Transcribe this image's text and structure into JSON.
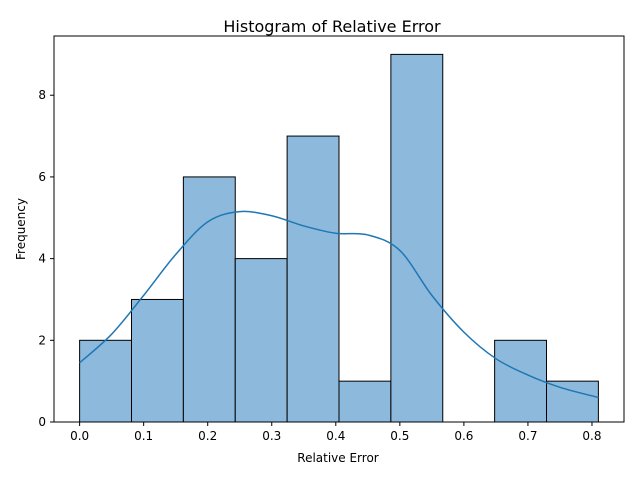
{
  "chart_data": {
    "type": "bar",
    "title": "Histogram of Relative Error",
    "xlabel": "Relative Error",
    "ylabel": "Frequency",
    "bins": [
      {
        "x_start": 0.0,
        "x_end": 0.081,
        "count": 2
      },
      {
        "x_start": 0.081,
        "x_end": 0.162,
        "count": 3
      },
      {
        "x_start": 0.162,
        "x_end": 0.243,
        "count": 6
      },
      {
        "x_start": 0.243,
        "x_end": 0.324,
        "count": 4
      },
      {
        "x_start": 0.324,
        "x_end": 0.405,
        "count": 7
      },
      {
        "x_start": 0.405,
        "x_end": 0.486,
        "count": 1
      },
      {
        "x_start": 0.486,
        "x_end": 0.567,
        "count": 9
      },
      {
        "x_start": 0.567,
        "x_end": 0.648,
        "count": 0
      },
      {
        "x_start": 0.648,
        "x_end": 0.729,
        "count": 2
      },
      {
        "x_start": 0.729,
        "x_end": 0.81,
        "count": 1
      }
    ],
    "kde_curve": {
      "x": [
        0.0,
        0.05,
        0.1,
        0.15,
        0.2,
        0.25,
        0.3,
        0.35,
        0.4,
        0.45,
        0.5,
        0.55,
        0.6,
        0.65,
        0.7,
        0.75,
        0.81
      ],
      "y": [
        1.45,
        2.15,
        3.1,
        4.1,
        4.9,
        5.15,
        5.05,
        4.8,
        4.62,
        4.58,
        4.2,
        3.1,
        2.2,
        1.55,
        1.15,
        0.85,
        0.6
      ]
    },
    "xlim": [
      -0.04,
      0.85
    ],
    "ylim": [
      0,
      9.45
    ],
    "xticks": [
      0.0,
      0.1,
      0.2,
      0.3,
      0.4,
      0.5,
      0.6,
      0.7,
      0.8
    ],
    "xtick_labels": [
      "0.0",
      "0.1",
      "0.2",
      "0.3",
      "0.4",
      "0.5",
      "0.6",
      "0.7",
      "0.8"
    ],
    "yticks": [
      0,
      2,
      4,
      6,
      8
    ],
    "ytick_labels": [
      "0",
      "2",
      "4",
      "6",
      "8"
    ],
    "grid": false,
    "colors": {
      "bar_fill": "#8dbadc",
      "bar_edge": "#000000",
      "kde_line": "#1f77b4"
    }
  }
}
